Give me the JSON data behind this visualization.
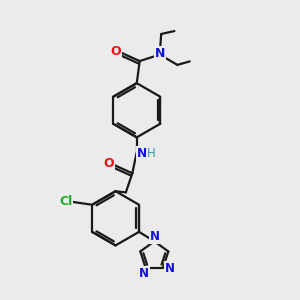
{
  "background_color": "#ebebeb",
  "bond_color": "#1a1a1a",
  "atom_colors": {
    "O": "#ee1111",
    "N": "#1111dd",
    "N_teal": "#3399aa",
    "Cl": "#22aa22",
    "H": "#888888"
  },
  "figsize": [
    3.0,
    3.0
  ],
  "dpi": 100
}
